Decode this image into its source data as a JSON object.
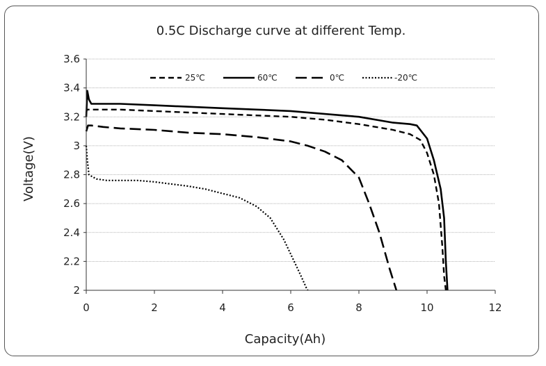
{
  "chart_data": {
    "type": "line",
    "title": "0.5C Discharge curve at different Temp.",
    "xlabel": "Capacity(Ah)",
    "ylabel": "Voltage(V)",
    "xlim": [
      0,
      12
    ],
    "ylim": [
      2,
      3.6
    ],
    "xticks": [
      0,
      2,
      4,
      6,
      8,
      10,
      12
    ],
    "yticks": [
      2,
      2.2,
      2.4,
      2.6,
      2.8,
      3,
      3.2,
      3.4,
      3.6
    ],
    "ytick_labels": [
      "2",
      "2.2",
      "2.4",
      "2.6",
      "2.8",
      "3",
      "3.2",
      "3.4",
      "3.6"
    ],
    "grid": "horizontal",
    "legend_position": "top-center",
    "series": [
      {
        "name": "25℃",
        "style": "dashed",
        "color": "#000000",
        "x": [
          0,
          0.02,
          0.2,
          1,
          2,
          3,
          4,
          5,
          6,
          7,
          8,
          9,
          9.5,
          9.8,
          10.0,
          10.2,
          10.35,
          10.45,
          10.5,
          10.55
        ],
        "y": [
          3.23,
          3.25,
          3.25,
          3.25,
          3.24,
          3.23,
          3.22,
          3.21,
          3.2,
          3.18,
          3.15,
          3.11,
          3.08,
          3.04,
          2.95,
          2.8,
          2.6,
          2.3,
          2.1,
          2.0
        ]
      },
      {
        "name": "60℃",
        "style": "solid",
        "color": "#000000",
        "x": [
          0,
          0.03,
          0.08,
          0.15,
          1,
          2,
          3,
          4,
          5,
          6,
          7,
          8,
          9,
          9.5,
          9.7,
          10.0,
          10.2,
          10.4,
          10.5,
          10.55,
          10.6
        ],
        "y": [
          3.2,
          3.38,
          3.32,
          3.29,
          3.29,
          3.28,
          3.27,
          3.26,
          3.25,
          3.24,
          3.22,
          3.2,
          3.16,
          3.15,
          3.14,
          3.05,
          2.9,
          2.7,
          2.5,
          2.2,
          2.0
        ]
      },
      {
        "name": "0℃",
        "style": "long-dashed",
        "color": "#000000",
        "x": [
          0,
          0.05,
          0.15,
          0.5,
          1,
          2,
          3,
          4,
          5,
          6,
          6.5,
          7,
          7.5,
          8.0,
          8.3,
          8.6,
          8.9,
          9.1
        ],
        "y": [
          3.1,
          3.14,
          3.14,
          3.13,
          3.12,
          3.11,
          3.09,
          3.08,
          3.06,
          3.03,
          3.0,
          2.96,
          2.9,
          2.78,
          2.6,
          2.4,
          2.15,
          2.0
        ]
      },
      {
        "name": "-20℃",
        "style": "dotted",
        "color": "#000000",
        "x": [
          0,
          0.03,
          0.08,
          0.15,
          0.3,
          0.6,
          1,
          1.5,
          2,
          3,
          3.5,
          4,
          4.5,
          5,
          5.4,
          5.8,
          6.1,
          6.3,
          6.45,
          6.5
        ],
        "y": [
          3.0,
          2.9,
          2.8,
          2.79,
          2.77,
          2.76,
          2.76,
          2.76,
          2.75,
          2.72,
          2.7,
          2.67,
          2.64,
          2.58,
          2.5,
          2.35,
          2.2,
          2.1,
          2.02,
          2.0
        ]
      }
    ]
  }
}
